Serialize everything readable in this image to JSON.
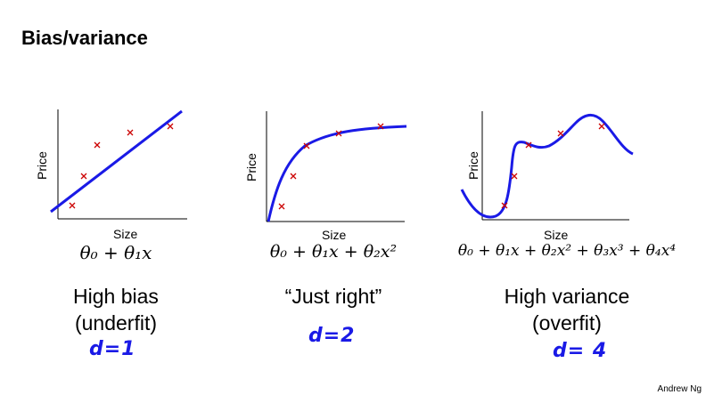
{
  "title": "Bias/variance",
  "credit": "Andrew Ng",
  "colors": {
    "curve": "#1a1ae6",
    "marker": "#cc0000",
    "handwriting": "#1a1ae6"
  },
  "panels": [
    {
      "ylabel": "Price",
      "xlabel": "Size",
      "formula": "θ₀ + θ₁x",
      "caption_line1": "High bias",
      "caption_line2": "(underfit)",
      "annotation": "d=1"
    },
    {
      "ylabel": "Price",
      "xlabel": "Size",
      "formula": "θ₀ + θ₁x + θ₂x²",
      "caption_line1": "“Just right”",
      "caption_line2": "",
      "annotation": "d=2"
    },
    {
      "ylabel": "Price",
      "xlabel": "Size",
      "formula": "θ₀ + θ₁x + θ₂x² + θ₃x³ + θ₄x⁴",
      "caption_line1": "High variance",
      "caption_line2": "(overfit)",
      "annotation": "d= 4"
    }
  ]
}
